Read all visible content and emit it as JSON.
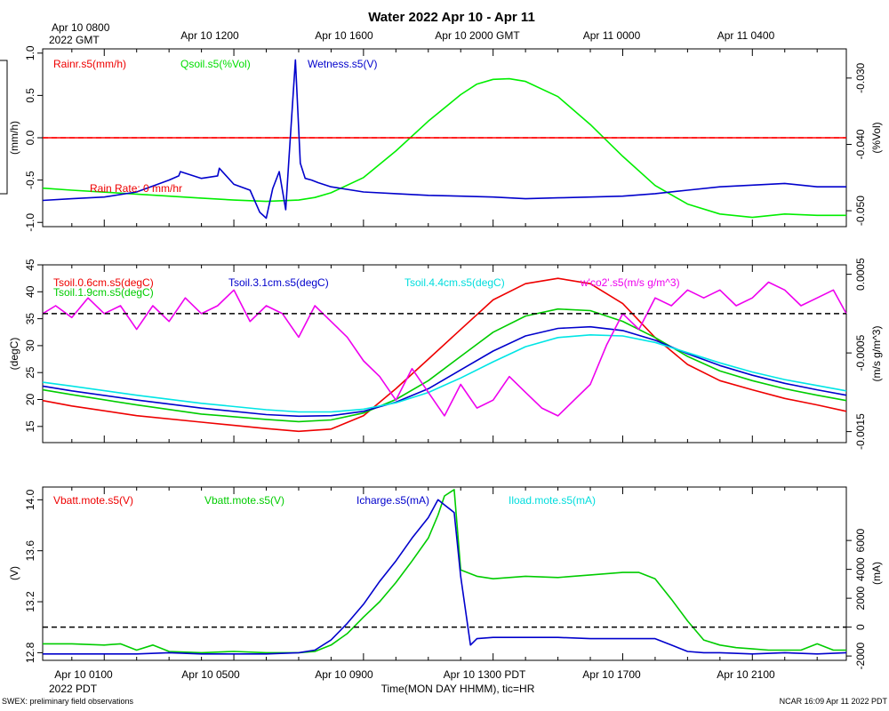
{
  "title": "Water 2022 Apr 10 - Apr 11",
  "top_axis": {
    "first_label_line1": "Apr 10 0800",
    "first_label_line2": "2022 GMT",
    "labels": [
      "Apr 10 1200",
      "Apr 10 1600",
      "Apr 10 2000 GMT",
      "Apr 11 0000",
      "Apr 11 0400"
    ]
  },
  "bottom_axis": {
    "labels": [
      "Apr 10 0100",
      "Apr 10 0500",
      "Apr 10 0900",
      "Apr 10 1300 PDT",
      "Apr 10 1700",
      "Apr 10 2100"
    ],
    "year_label": "2022 PDT",
    "xlabel": "Time(MON DAY HHMM), tic=HR"
  },
  "footer": {
    "left": "SWEX: preliminary field observations",
    "right": "NCAR 16:09 Apr 11 2022 PDT"
  },
  "chart_data": [
    {
      "type": "line",
      "panel": "water",
      "x_unit": "hours since Apr 10 0000 PDT",
      "xlim": [
        -0.9,
        23.9
      ],
      "ylabel_left": "(mm/h)",
      "ylabel_right": "(%Vol)",
      "ylim_left": [
        -1.05,
        1.05
      ],
      "ylim_right": [
        -0.0524,
        -0.0256
      ],
      "yticks_left": [
        1.0,
        0.5,
        0.0,
        -0.5,
        -1.0
      ],
      "yticks_left_labels": [
        "1.0",
        "0.5",
        "0.0",
        "-0.5",
        "-1.0"
      ],
      "yticks_right": [
        -0.03,
        -0.04,
        -0.05
      ],
      "yticks_right_labels": [
        "-0.030",
        "-0.040",
        "-0.050"
      ],
      "reference_lines": [
        {
          "axis": "left",
          "value": 0.0,
          "color": "#ff0000",
          "style": "dashed"
        }
      ],
      "annotation": {
        "text": "Rain Rate: 0 mm/hr",
        "color": "#ff0000"
      },
      "series": [
        {
          "name": "Rainr.s5(mm/h)",
          "color": "#ff0000",
          "axis": "left",
          "x": [
            -0.9,
            23.9
          ],
          "y": [
            0.0,
            0.0
          ]
        },
        {
          "name": "Qsoil.s5(%Vol)",
          "color": "#00ee00",
          "axis": "right",
          "x": [
            -0.9,
            0.0,
            1.0,
            2.0,
            3.0,
            4.0,
            5.0,
            6.0,
            7.0,
            7.5,
            8.0,
            9.0,
            10.0,
            11.0,
            12.0,
            12.5,
            13.0,
            13.5,
            14.0,
            15.0,
            16.0,
            17.0,
            18.0,
            19.0,
            20.0,
            21.0,
            22.0,
            23.0,
            23.9
          ],
          "y": [
            -0.0466,
            -0.0469,
            -0.0472,
            -0.0475,
            -0.0478,
            -0.0481,
            -0.0484,
            -0.0486,
            -0.0484,
            -0.048,
            -0.0473,
            -0.045,
            -0.041,
            -0.0365,
            -0.0325,
            -0.0309,
            -0.0302,
            -0.0301,
            -0.0305,
            -0.0328,
            -0.037,
            -0.0418,
            -0.0462,
            -0.049,
            -0.0505,
            -0.051,
            -0.0505,
            -0.0507,
            -0.0507
          ]
        },
        {
          "name": "Wetness.s5(V)",
          "color": "#0000cc",
          "axis": "left",
          "x": [
            -0.9,
            0.0,
            1.0,
            2.0,
            3.0,
            3.3,
            3.35,
            4.0,
            4.5,
            4.55,
            5.0,
            5.5,
            5.8,
            6.0,
            6.2,
            6.4,
            6.6,
            6.7,
            6.9,
            7.05,
            7.2,
            7.4,
            7.6,
            8.0,
            9.0,
            10.0,
            11.0,
            12.0,
            13.0,
            14.0,
            15.0,
            16.0,
            17.0,
            18.0,
            19.0,
            20.0,
            21.0,
            22.0,
            23.0,
            23.9
          ],
          "y": [
            -0.74,
            -0.72,
            -0.7,
            -0.64,
            -0.5,
            -0.45,
            -0.4,
            -0.48,
            -0.45,
            -0.36,
            -0.55,
            -0.62,
            -0.88,
            -0.95,
            -0.6,
            -0.4,
            -0.85,
            -0.25,
            0.92,
            -0.3,
            -0.48,
            -0.5,
            -0.53,
            -0.58,
            -0.64,
            -0.66,
            -0.68,
            -0.69,
            -0.7,
            -0.72,
            -0.71,
            -0.7,
            -0.69,
            -0.66,
            -0.62,
            -0.58,
            -0.56,
            -0.54,
            -0.58,
            -0.58
          ]
        }
      ]
    },
    {
      "type": "line",
      "panel": "temperature",
      "x_unit": "hours since Apr 10 0000 PDT",
      "xlim": [
        -0.9,
        23.9
      ],
      "ylabel_left": "(degC)",
      "ylabel_right": "(m/s g/m^3)",
      "ylim_left": [
        12.0,
        45.0
      ],
      "ylim_right": [
        -0.00164,
        0.00062
      ],
      "yticks_left": [
        15,
        20,
        25,
        30,
        35,
        40,
        45
      ],
      "yticks_left_labels": [
        "15",
        "20",
        "25",
        "30",
        "35",
        "40",
        "45"
      ],
      "yticks_right": [
        0.0005,
        -0.0005,
        -0.0015
      ],
      "yticks_right_labels": [
        "0.0005",
        "-0.0005",
        "-0.0015"
      ],
      "reference_lines": [
        {
          "axis": "right",
          "value": 0.0,
          "color": "#000000",
          "style": "dashed"
        }
      ],
      "series": [
        {
          "name": "Tsoil.0.6cm.s5(degC)",
          "color": "#ee0000",
          "axis": "left",
          "x": [
            -0.9,
            0,
            2,
            4,
            6,
            7,
            8,
            9,
            10,
            11,
            12,
            13,
            14,
            15,
            16,
            17,
            18,
            19,
            20,
            21,
            22,
            23,
            23.9
          ],
          "y": [
            19.8,
            18.8,
            17.0,
            15.8,
            14.6,
            14.1,
            14.5,
            17.0,
            22.0,
            27.5,
            33.0,
            38.5,
            41.5,
            42.5,
            41.5,
            37.8,
            31.5,
            26.5,
            23.5,
            21.8,
            20.2,
            19.0,
            17.8
          ]
        },
        {
          "name": "Tsoil.1.9cm.s5(degC)",
          "color": "#00cc00",
          "axis": "left",
          "x": [
            -0.9,
            0,
            2,
            4,
            6,
            7,
            8,
            9,
            10,
            11,
            12,
            13,
            14,
            15,
            16,
            17,
            18,
            19,
            20,
            21,
            22,
            23,
            23.9
          ],
          "y": [
            21.8,
            20.9,
            19.0,
            17.3,
            16.3,
            15.9,
            16.2,
            17.5,
            20.0,
            23.5,
            28.0,
            32.5,
            35.5,
            36.8,
            36.5,
            34.5,
            31.5,
            28.0,
            25.3,
            23.5,
            22.0,
            20.8,
            19.8
          ]
        },
        {
          "name": "Tsoil.3.1cm.s5(degC)",
          "color": "#0000cc",
          "axis": "left",
          "x": [
            -0.9,
            0,
            2,
            4,
            6,
            7,
            8,
            9,
            10,
            11,
            12,
            13,
            14,
            15,
            16,
            17,
            18,
            19,
            20,
            21,
            22,
            23,
            23.9
          ],
          "y": [
            22.5,
            21.6,
            19.9,
            18.4,
            17.2,
            16.9,
            17.0,
            17.8,
            19.5,
            22.0,
            25.5,
            29.0,
            31.8,
            33.2,
            33.5,
            32.8,
            31.0,
            28.5,
            26.3,
            24.5,
            23.0,
            21.8,
            20.8
          ]
        },
        {
          "name": "Tsoil.4.4cm.s5(degC)",
          "color": "#00e5e5",
          "axis": "left",
          "x": [
            -0.9,
            0,
            2,
            4,
            6,
            7,
            8,
            9,
            10,
            11,
            12,
            13,
            14,
            15,
            16,
            17,
            18,
            19,
            20,
            21,
            22,
            23,
            23.9
          ],
          "y": [
            23.2,
            22.5,
            20.8,
            19.3,
            18.1,
            17.7,
            17.7,
            18.2,
            19.4,
            21.3,
            24.0,
            27.0,
            29.8,
            31.5,
            32.0,
            31.8,
            30.6,
            28.7,
            26.8,
            25.1,
            23.7,
            22.6,
            21.6
          ]
        },
        {
          "name": "w'co2'.s5(m/s g/m^3)",
          "color": "#ee00ee",
          "axis": "right",
          "x": [
            -0.9,
            -0.5,
            0,
            0.5,
            1,
            1.5,
            2,
            2.5,
            3,
            3.5,
            4,
            4.5,
            5,
            5.5,
            6,
            6.5,
            7,
            7.5,
            8,
            8.5,
            9,
            9.5,
            10,
            10.5,
            11,
            11.5,
            12,
            12.5,
            13,
            13.5,
            14,
            14.5,
            15,
            15.5,
            16,
            16.5,
            17,
            17.5,
            18,
            18.5,
            19,
            19.5,
            20,
            20.5,
            21,
            21.5,
            22,
            22.5,
            23,
            23.5,
            23.9
          ],
          "y": [
            0.0,
            0.0001,
            -5e-05,
            0.0002,
            0.0,
            0.0001,
            -0.0002,
            0.0001,
            -0.0001,
            0.0002,
            0.0,
            0.0001,
            0.0003,
            -0.0001,
            0.0001,
            0.0,
            -0.0003,
            0.0001,
            -0.0001,
            -0.0003,
            -0.0006,
            -0.0008,
            -0.0011,
            -0.0007,
            -0.001,
            -0.0013,
            -0.0009,
            -0.0012,
            -0.0011,
            -0.0008,
            -0.001,
            -0.0012,
            -0.0013,
            -0.0011,
            -0.0009,
            -0.0004,
            0.0,
            -0.0002,
            0.0002,
            0.0001,
            0.0003,
            0.0002,
            0.0003,
            0.0001,
            0.0002,
            0.0004,
            0.0003,
            0.0001,
            0.0002,
            0.0003,
            0.0
          ]
        }
      ]
    },
    {
      "type": "line",
      "panel": "power",
      "x_unit": "hours since Apr 10 0000 PDT",
      "xlim": [
        -0.9,
        23.9
      ],
      "ylabel_left": "(V)",
      "ylabel_right": "(mA)",
      "ylim_left": [
        12.74,
        14.1
      ],
      "ylim_right": [
        -2300,
        9700
      ],
      "yticks_left": [
        12.8,
        13.2,
        13.6,
        14.0
      ],
      "yticks_left_labels": [
        "12.8",
        "13.2",
        "13.6",
        "14.0"
      ],
      "yticks_right": [
        -2000,
        0,
        2000,
        4000,
        6000
      ],
      "yticks_right_labels": [
        "-2000",
        "0",
        "2000",
        "4000",
        "6000"
      ],
      "reference_lines": [
        {
          "axis": "right",
          "value": 0,
          "color": "#000000",
          "style": "dashed"
        }
      ],
      "series": [
        {
          "name": "Vbatt.mote.s5(V)",
          "color": "#ee0000",
          "axis": "left",
          "x": [],
          "y": []
        },
        {
          "name": "Vbatt.mote.s5(V)",
          "color": "#00cc00",
          "axis": "left",
          "x": [
            -0.9,
            0,
            1,
            1.5,
            2,
            2.5,
            3,
            4,
            5,
            6,
            7,
            7.5,
            8,
            8.5,
            9,
            9.5,
            10,
            10.5,
            11,
            11.3,
            11.5,
            11.8,
            12,
            12.5,
            13,
            14,
            15,
            16,
            17,
            17.5,
            18,
            18.5,
            19,
            19.5,
            20,
            20.5,
            21,
            21.5,
            22,
            22.5,
            23,
            23.5,
            23.9
          ],
          "y": [
            12.87,
            12.87,
            12.86,
            12.87,
            12.82,
            12.86,
            12.81,
            12.8,
            12.81,
            12.8,
            12.8,
            12.81,
            12.86,
            12.95,
            13.08,
            13.2,
            13.35,
            13.52,
            13.7,
            13.88,
            14.03,
            14.08,
            13.45,
            13.4,
            13.38,
            13.4,
            13.39,
            13.41,
            13.43,
            13.43,
            13.38,
            13.22,
            13.05,
            12.9,
            12.86,
            12.84,
            12.83,
            12.82,
            12.82,
            12.82,
            12.87,
            12.82,
            12.82
          ]
        },
        {
          "name": "Icharge.s5(mA)",
          "color": "#0000cc",
          "axis": "left",
          "x": [
            -0.9,
            0,
            1,
            2,
            3,
            4,
            5,
            6,
            7,
            7.5,
            8,
            8.5,
            9,
            9.5,
            10,
            10.5,
            11,
            11.3,
            11.5,
            11.8,
            12,
            12.3,
            12.5,
            13,
            14,
            15,
            16,
            17,
            18,
            18.5,
            19,
            19.5,
            20,
            21,
            22,
            23,
            23.9
          ],
          "y": [
            12.79,
            12.79,
            12.79,
            12.79,
            12.8,
            12.79,
            12.79,
            12.79,
            12.8,
            12.82,
            12.9,
            13.03,
            13.18,
            13.36,
            13.52,
            13.7,
            13.86,
            14.0,
            13.96,
            13.9,
            13.4,
            12.86,
            12.91,
            12.92,
            12.92,
            12.92,
            12.91,
            12.91,
            12.91,
            12.86,
            12.81,
            12.8,
            12.8,
            12.79,
            12.8,
            12.79,
            12.8
          ]
        },
        {
          "name": "Iload.mote.s5(mA)",
          "color": "#00e5e5",
          "axis": "right",
          "x": [],
          "y": []
        }
      ]
    }
  ]
}
